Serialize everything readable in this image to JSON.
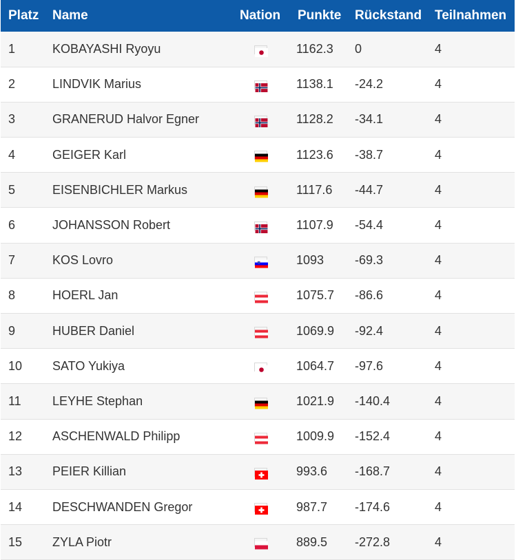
{
  "headers": {
    "platz": "Platz",
    "name": "Name",
    "nation": "Nation",
    "punkte": "Punkte",
    "rueckstand": "Rückstand",
    "teilnahmen": "Teilnahmen"
  },
  "rows": [
    {
      "platz": "1",
      "name": "KOBAYASHI Ryoyu",
      "nation": "jpn-flag-icon",
      "punkte": "1162.3",
      "rueckstand": "0",
      "teilnahmen": "4"
    },
    {
      "platz": "2",
      "name": "LINDVIK Marius",
      "nation": "nor-flag-icon",
      "punkte": "1138.1",
      "rueckstand": "-24.2",
      "teilnahmen": "4"
    },
    {
      "platz": "3",
      "name": "GRANERUD Halvor Egner",
      "nation": "nor-flag-icon",
      "punkte": "1128.2",
      "rueckstand": "-34.1",
      "teilnahmen": "4"
    },
    {
      "platz": "4",
      "name": "GEIGER Karl",
      "nation": "ger-flag-icon",
      "punkte": "1123.6",
      "rueckstand": "-38.7",
      "teilnahmen": "4"
    },
    {
      "platz": "5",
      "name": "EISENBICHLER Markus",
      "nation": "ger-flag-icon",
      "punkte": "1117.6",
      "rueckstand": "-44.7",
      "teilnahmen": "4"
    },
    {
      "platz": "6",
      "name": "JOHANSSON Robert",
      "nation": "nor-flag-icon",
      "punkte": "1107.9",
      "rueckstand": "-54.4",
      "teilnahmen": "4"
    },
    {
      "platz": "7",
      "name": "KOS Lovro",
      "nation": "slo-flag-icon",
      "punkte": "1093",
      "rueckstand": "-69.3",
      "teilnahmen": "4"
    },
    {
      "platz": "8",
      "name": "HOERL Jan",
      "nation": "aut-flag-icon",
      "punkte": "1075.7",
      "rueckstand": "-86.6",
      "teilnahmen": "4"
    },
    {
      "platz": "9",
      "name": "HUBER Daniel",
      "nation": "aut-flag-icon",
      "punkte": "1069.9",
      "rueckstand": "-92.4",
      "teilnahmen": "4"
    },
    {
      "platz": "10",
      "name": "SATO Yukiya",
      "nation": "jpn-flag-icon",
      "punkte": "1064.7",
      "rueckstand": "-97.6",
      "teilnahmen": "4"
    },
    {
      "platz": "11",
      "name": "LEYHE Stephan",
      "nation": "ger-flag-icon",
      "punkte": "1021.9",
      "rueckstand": "-140.4",
      "teilnahmen": "4"
    },
    {
      "platz": "12",
      "name": "ASCHENWALD Philipp",
      "nation": "aut-flag-icon",
      "punkte": "1009.9",
      "rueckstand": "-152.4",
      "teilnahmen": "4"
    },
    {
      "platz": "13",
      "name": "PEIER Killian",
      "nation": "sui-flag-icon",
      "punkte": "993.6",
      "rueckstand": "-168.7",
      "teilnahmen": "4"
    },
    {
      "platz": "14",
      "name": "DESCHWANDEN Gregor",
      "nation": "sui-flag-icon",
      "punkte": "987.7",
      "rueckstand": "-174.6",
      "teilnahmen": "4"
    },
    {
      "platz": "15",
      "name": "ZYLA Piotr",
      "nation": "pol-flag-icon",
      "punkte": "889.5",
      "rueckstand": "-272.8",
      "teilnahmen": "4"
    }
  ],
  "colors": {
    "header_bg": "#0e5ba8",
    "header_text": "#ffffff",
    "row_odd_bg": "#f6f6f6",
    "row_even_bg": "#ffffff"
  }
}
